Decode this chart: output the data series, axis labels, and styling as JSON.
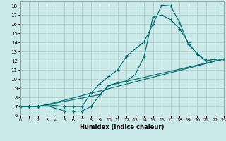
{
  "xlabel": "Humidex (Indice chaleur)",
  "bg_color": "#cce9e9",
  "grid_color": "#aacccc",
  "line_color": "#007070",
  "xlim": [
    0,
    23
  ],
  "ylim": [
    6,
    18.5
  ],
  "xticks": [
    0,
    1,
    2,
    3,
    4,
    5,
    6,
    7,
    8,
    9,
    10,
    11,
    12,
    13,
    14,
    15,
    16,
    17,
    18,
    19,
    20,
    21,
    22,
    23
  ],
  "yticks": [
    6,
    7,
    8,
    9,
    10,
    11,
    12,
    13,
    14,
    15,
    16,
    17,
    18
  ],
  "curve1_x": [
    0,
    1,
    2,
    3,
    4,
    5,
    6,
    7,
    8,
    9,
    10,
    11,
    12,
    13,
    14,
    15,
    16,
    17,
    18,
    19,
    20,
    21,
    22,
    23
  ],
  "curve1_y": [
    7.0,
    7.0,
    7.0,
    7.2,
    7.1,
    7.0,
    7.0,
    7.0,
    8.5,
    9.5,
    10.3,
    11.0,
    12.5,
    13.3,
    14.1,
    16.0,
    18.1,
    18.0,
    16.2,
    13.8,
    12.8,
    12.0,
    12.2,
    12.2
  ],
  "curve2_x": [
    0,
    1,
    2,
    3,
    4,
    5,
    6,
    7,
    8,
    9,
    10,
    11,
    12,
    13,
    14,
    15,
    16,
    17,
    18,
    19,
    20,
    21,
    22,
    23
  ],
  "curve2_y": [
    7.0,
    7.0,
    7.0,
    7.1,
    6.8,
    6.5,
    6.5,
    6.5,
    7.0,
    8.3,
    9.3,
    9.6,
    9.8,
    10.5,
    12.5,
    16.8,
    17.0,
    16.5,
    15.5,
    14.0,
    12.7,
    12.0,
    12.2,
    12.2
  ],
  "curve3_x": [
    0,
    1,
    2,
    3,
    23
  ],
  "curve3_y": [
    7.0,
    7.0,
    7.0,
    7.2,
    12.2
  ],
  "curve4_x": [
    0,
    1,
    2,
    3,
    9,
    10,
    23
  ],
  "curve4_y": [
    7.0,
    7.0,
    7.0,
    7.2,
    8.3,
    9.3,
    12.2
  ]
}
